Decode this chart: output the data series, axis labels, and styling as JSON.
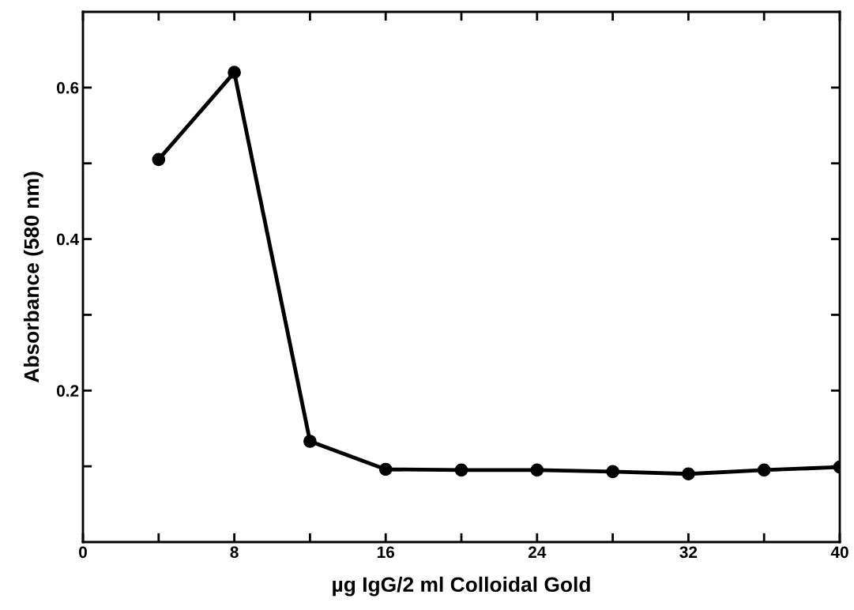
{
  "chart_data": {
    "type": "line",
    "xlabel": "µg IgG/2 ml Colloidal Gold",
    "ylabel": "Absorbance (580 nm)",
    "x": [
      4,
      8,
      12,
      16,
      20,
      24,
      28,
      32,
      36,
      40
    ],
    "series": [
      {
        "color": "#000000",
        "values": [
          0.505,
          0.62,
          0.133,
          0.096,
          0.095,
          0.095,
          0.093,
          0.09,
          0.095,
          0.099
        ]
      }
    ],
    "xlim": [
      0,
      40
    ],
    "ylim": [
      0,
      0.7
    ],
    "xticks": [
      0,
      {
        "value": 4,
        "label": null
      },
      8,
      {
        "value": 12,
        "label": null
      },
      16,
      {
        "value": 20,
        "label": null
      },
      24,
      {
        "value": 28,
        "label": null
      },
      32,
      {
        "value": 36,
        "label": null
      },
      40
    ],
    "yticks": [
      {
        "value": 0.1,
        "label": null
      },
      0.2,
      {
        "value": 0.3,
        "label": null
      },
      0.4,
      {
        "value": 0.5,
        "label": null
      },
      0.6
    ],
    "marker": "circle",
    "line_style": "solid",
    "grid": false,
    "legend": false
  }
}
